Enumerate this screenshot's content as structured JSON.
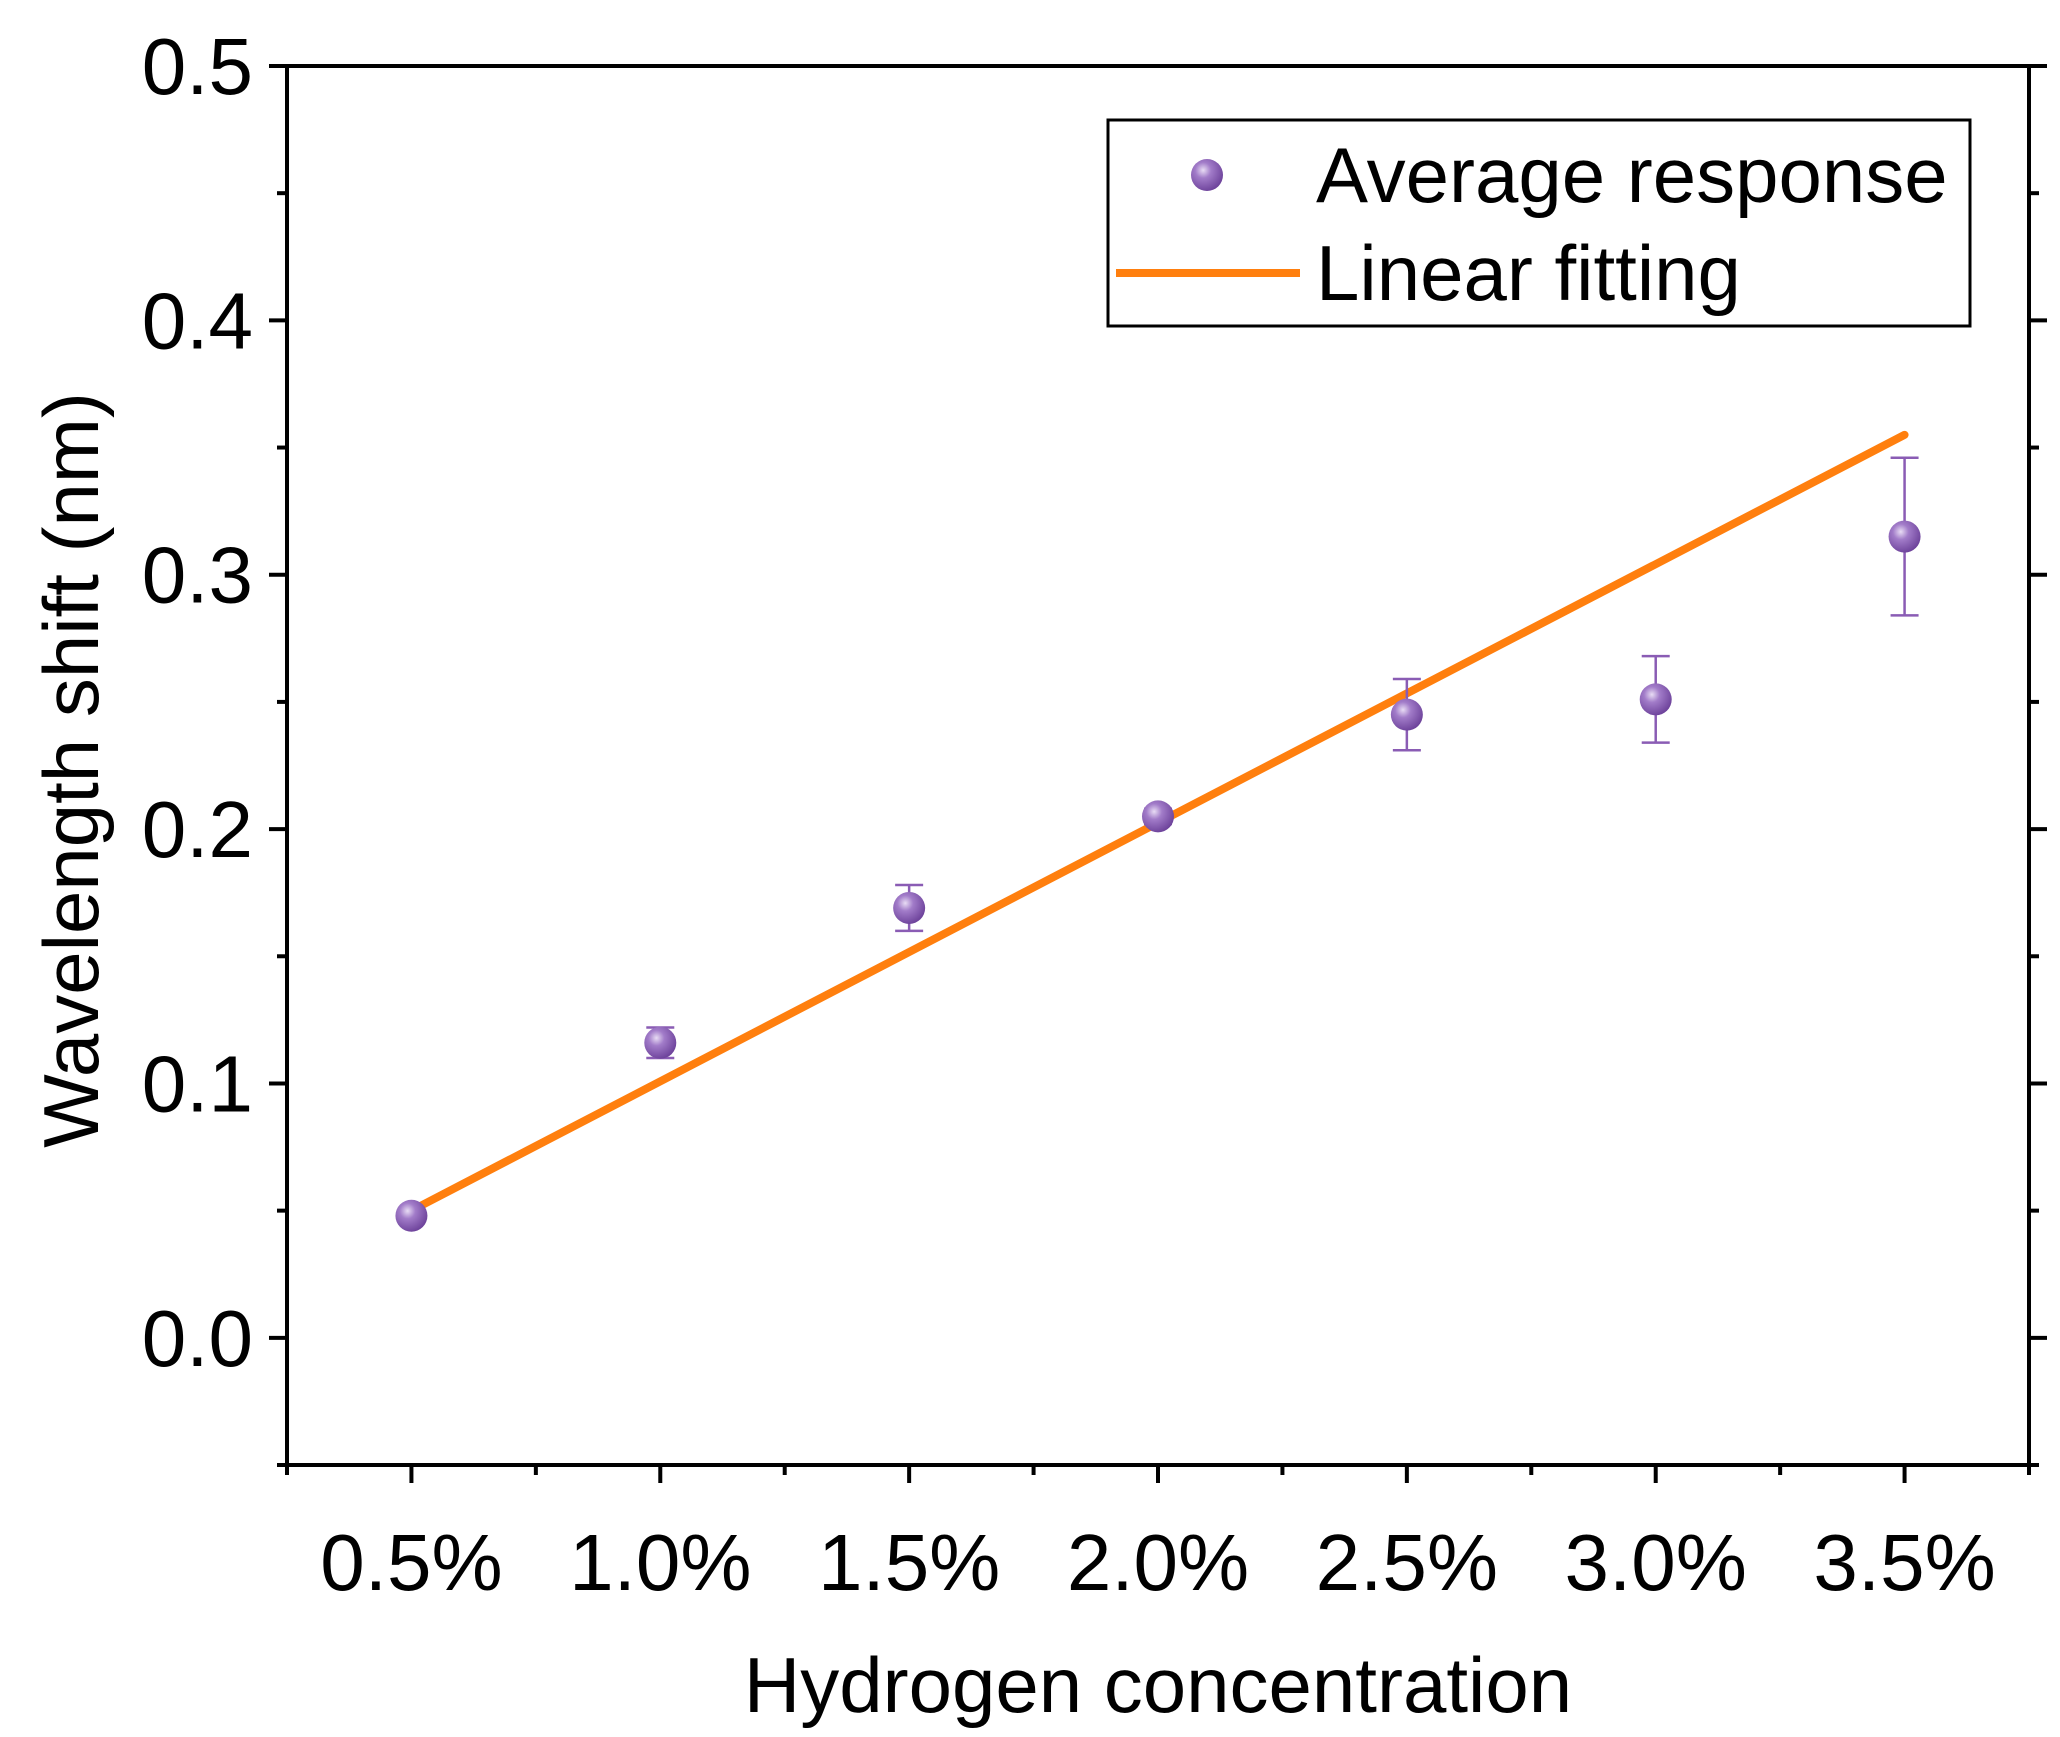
{
  "chart_data": {
    "type": "scatter",
    "title": "",
    "xlabel": "Hydrogen concentration",
    "ylabel": "Wavelength shift (nm)",
    "xlim": [
      0.25,
      3.75
    ],
    "ylim": [
      -0.05,
      0.5
    ],
    "x_ticks": [
      0.5,
      1.0,
      1.5,
      2.0,
      2.5,
      3.0,
      3.5
    ],
    "x_tick_labels": [
      "0.5%",
      "1.0%",
      "1.5%",
      "2.0%",
      "2.5%",
      "3.0%",
      "3.5%"
    ],
    "y_ticks": [
      0.0,
      0.1,
      0.2,
      0.3,
      0.4,
      0.5
    ],
    "y_tick_labels": [
      "0.0",
      "0.1",
      "0.2",
      "0.3",
      "0.4",
      "0.5"
    ],
    "grid": false,
    "legend_position": "top-right",
    "series": [
      {
        "name": "Average response",
        "kind": "scatter",
        "color": "#8a5cb4",
        "x": [
          0.5,
          1.0,
          1.5,
          2.0,
          2.5,
          3.0,
          3.5
        ],
        "y": [
          0.048,
          0.116,
          0.169,
          0.205,
          0.245,
          0.251,
          0.315
        ],
        "error": [
          0.002,
          0.006,
          0.009,
          0.003,
          0.014,
          0.017,
          0.031
        ]
      },
      {
        "name": "Linear fitting",
        "kind": "line",
        "color": "#ff7f0e",
        "x": [
          0.5,
          3.5
        ],
        "y": [
          0.05,
          0.355
        ]
      }
    ]
  }
}
